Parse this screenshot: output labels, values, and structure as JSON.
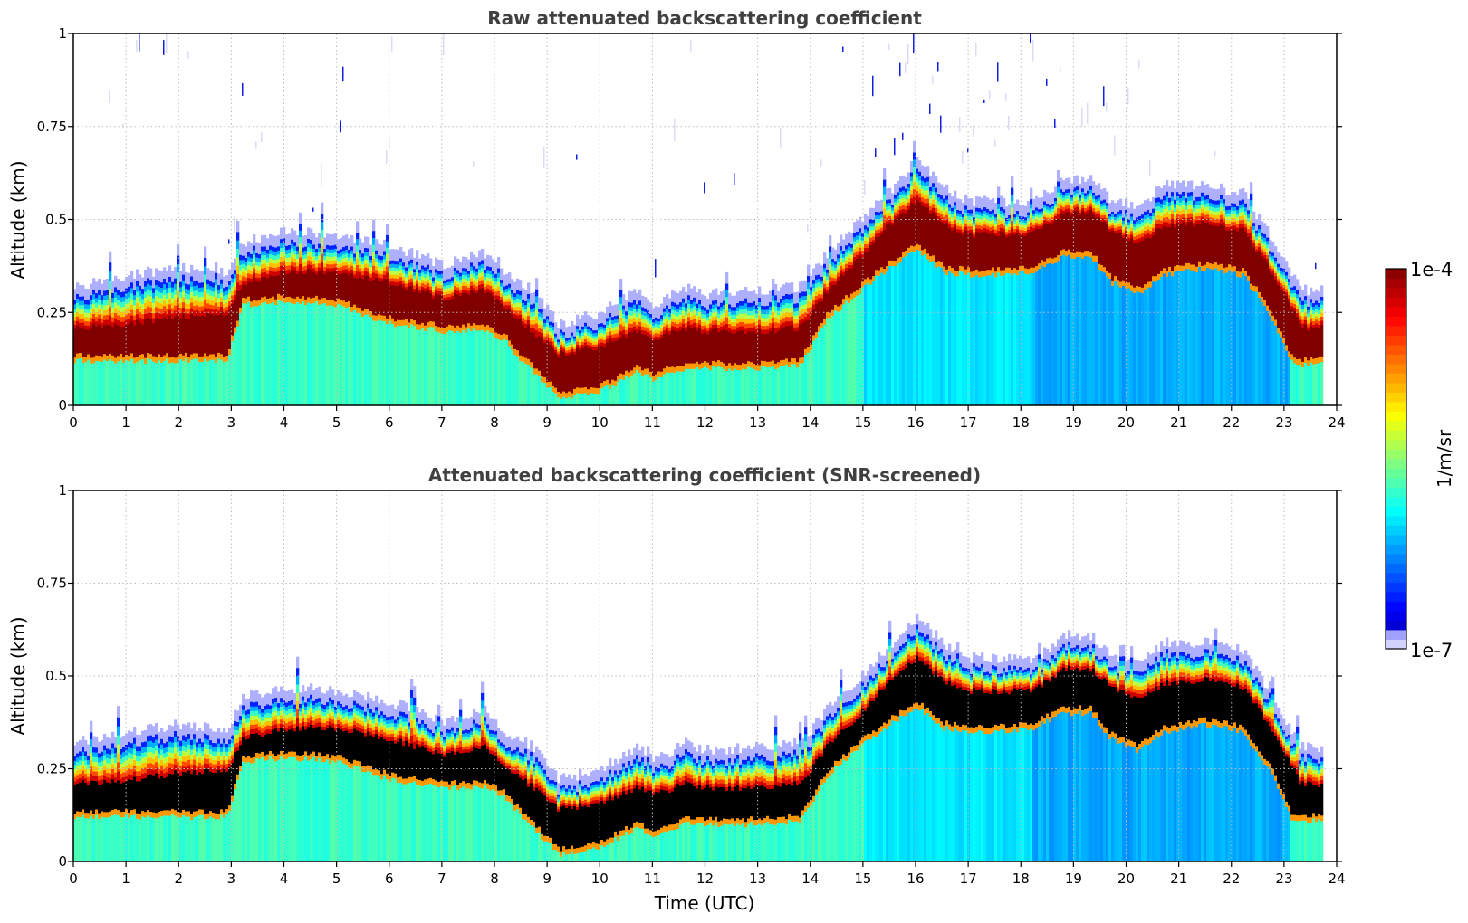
{
  "chart_data": [
    {
      "type": "heatmap",
      "title": "Raw attenuated backscattering coefficient",
      "xlabel": "",
      "ylabel": "Altitude (km)",
      "xlim": [
        0,
        24
      ],
      "ylim": [
        0,
        1
      ],
      "xticks": [
        "0",
        "1",
        "2",
        "3",
        "4",
        "5",
        "6",
        "7",
        "8",
        "9",
        "10",
        "11",
        "12",
        "13",
        "14",
        "15",
        "16",
        "17",
        "18",
        "19",
        "20",
        "21",
        "22",
        "23",
        "24"
      ],
      "yticks": [
        "0",
        "0.25",
        "0.5",
        "0.75",
        "1"
      ],
      "grid": true,
      "saturated_color": "#800000",
      "profile": {
        "time_utc": [
          0,
          1,
          2,
          2.9,
          3.2,
          4,
          5,
          6,
          7,
          7.8,
          8.2,
          8.7,
          9.2,
          10,
          10.7,
          11,
          11.6,
          12,
          13,
          13.8,
          14.3,
          15,
          15.5,
          16,
          16.5,
          17,
          17.5,
          18.2,
          18.8,
          19.3,
          19.7,
          20.2,
          20.7,
          21.5,
          22.2,
          22.7,
          23.1,
          23.3,
          23.7
        ],
        "layer_top_km": [
          0.29,
          0.32,
          0.34,
          0.33,
          0.41,
          0.44,
          0.43,
          0.4,
          0.35,
          0.38,
          0.32,
          0.28,
          0.19,
          0.22,
          0.28,
          0.24,
          0.29,
          0.27,
          0.28,
          0.29,
          0.38,
          0.48,
          0.55,
          0.63,
          0.56,
          0.52,
          0.52,
          0.51,
          0.58,
          0.58,
          0.52,
          0.51,
          0.56,
          0.56,
          0.54,
          0.43,
          0.33,
          0.28,
          0.28
        ],
        "band_top_km": [
          0.21,
          0.22,
          0.24,
          0.25,
          0.33,
          0.36,
          0.36,
          0.33,
          0.29,
          0.31,
          0.26,
          0.2,
          0.14,
          0.16,
          0.2,
          0.18,
          0.21,
          0.2,
          0.2,
          0.21,
          0.31,
          0.41,
          0.49,
          0.55,
          0.49,
          0.46,
          0.46,
          0.46,
          0.52,
          0.52,
          0.47,
          0.44,
          0.48,
          0.49,
          0.47,
          0.37,
          0.27,
          0.21,
          0.21
        ],
        "band_bottom_km": [
          0.12,
          0.12,
          0.12,
          0.12,
          0.27,
          0.28,
          0.27,
          0.22,
          0.2,
          0.2,
          0.17,
          0.09,
          0.02,
          0.04,
          0.09,
          0.07,
          0.1,
          0.1,
          0.1,
          0.11,
          0.23,
          0.32,
          0.37,
          0.42,
          0.36,
          0.35,
          0.35,
          0.36,
          0.4,
          0.4,
          0.33,
          0.3,
          0.35,
          0.37,
          0.35,
          0.25,
          0.12,
          0.11,
          0.11
        ]
      }
    },
    {
      "type": "heatmap",
      "title": "Attenuated backscattering coefficient (SNR-screened)",
      "xlabel": "Time (UTC)",
      "ylabel": "Altitude (km)",
      "xlim": [
        0,
        24
      ],
      "ylim": [
        0,
        1
      ],
      "xticks": [
        "0",
        "1",
        "2",
        "3",
        "4",
        "5",
        "6",
        "7",
        "8",
        "9",
        "10",
        "11",
        "12",
        "13",
        "14",
        "15",
        "16",
        "17",
        "18",
        "19",
        "20",
        "21",
        "22",
        "23",
        "24"
      ],
      "yticks": [
        "0",
        "0.25",
        "0.5",
        "0.75",
        "1"
      ],
      "grid": true,
      "saturated_color": "#000000",
      "profile_source": "same layer profile as raw panel, screened above layer top"
    }
  ],
  "colorbar": {
    "label": "1/m/sr",
    "max_label": "1e-4",
    "min_label": "1e-7",
    "scale": "log",
    "range": [
      1e-07,
      0.0001
    ]
  }
}
